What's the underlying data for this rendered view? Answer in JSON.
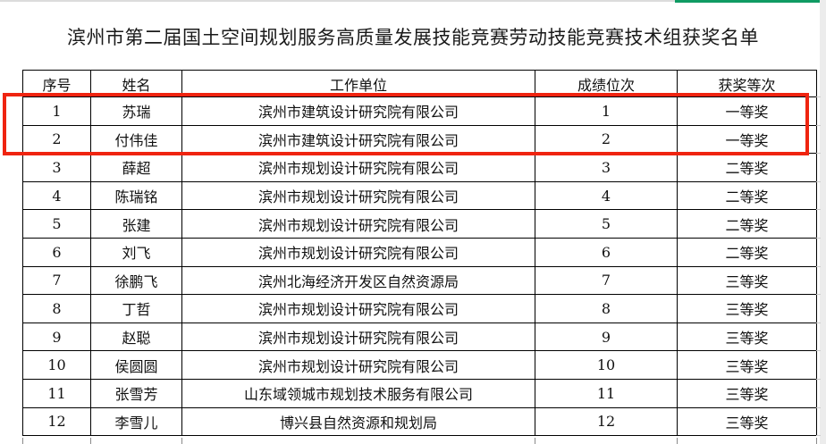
{
  "page": {
    "title": "滨州市第二届国土空间规划服务高质量发展技能竞赛劳动技能竞赛技术组获奖名单"
  },
  "table": {
    "columns": [
      "序号",
      "姓名",
      "工作单位",
      "成绩位次",
      "获奖等次"
    ],
    "rows": [
      [
        "1",
        "苏瑞",
        "滨州市建筑设计研究院有限公司",
        "1",
        "一等奖"
      ],
      [
        "2",
        "付伟佳",
        "滨州市建筑设计研究院有限公司",
        "2",
        "一等奖"
      ],
      [
        "3",
        "薛超",
        "滨州市规划设计研究院有限公司",
        "3",
        "二等奖"
      ],
      [
        "4",
        "陈瑞铭",
        "滨州市规划设计研究院有限公司",
        "4",
        "二等奖"
      ],
      [
        "5",
        "张建",
        "滨州市规划设计研究院有限公司",
        "5",
        "二等奖"
      ],
      [
        "6",
        "刘飞",
        "滨州市规划设计研究院有限公司",
        "6",
        "二等奖"
      ],
      [
        "7",
        "徐鹏飞",
        "滨州北海经济开发区自然资源局",
        "7",
        "三等奖"
      ],
      [
        "8",
        "丁哲",
        "滨州市规划设计研究院有限公司",
        "8",
        "三等奖"
      ],
      [
        "9",
        "赵聪",
        "滨州市规划设计研究院有限公司",
        "9",
        "三等奖"
      ],
      [
        "10",
        "侯圆圆",
        "滨州市规划设计研究院有限公司",
        "10",
        "三等奖"
      ],
      [
        "11",
        "张雪芳",
        "山东域领城市规划技术服务有限公司",
        "11",
        "三等奖"
      ],
      [
        "12",
        "李雪儿",
        "博兴县自然资源和规划局",
        "12",
        "三等奖"
      ]
    ],
    "highlight": {
      "row_indexes": [
        0,
        1
      ]
    }
  },
  "colors": {
    "highlight_border": "#ef2410",
    "top_bar_green": "#0f9b63",
    "top_bar_grey": "#dcdcdc",
    "table_border": "#000000"
  }
}
